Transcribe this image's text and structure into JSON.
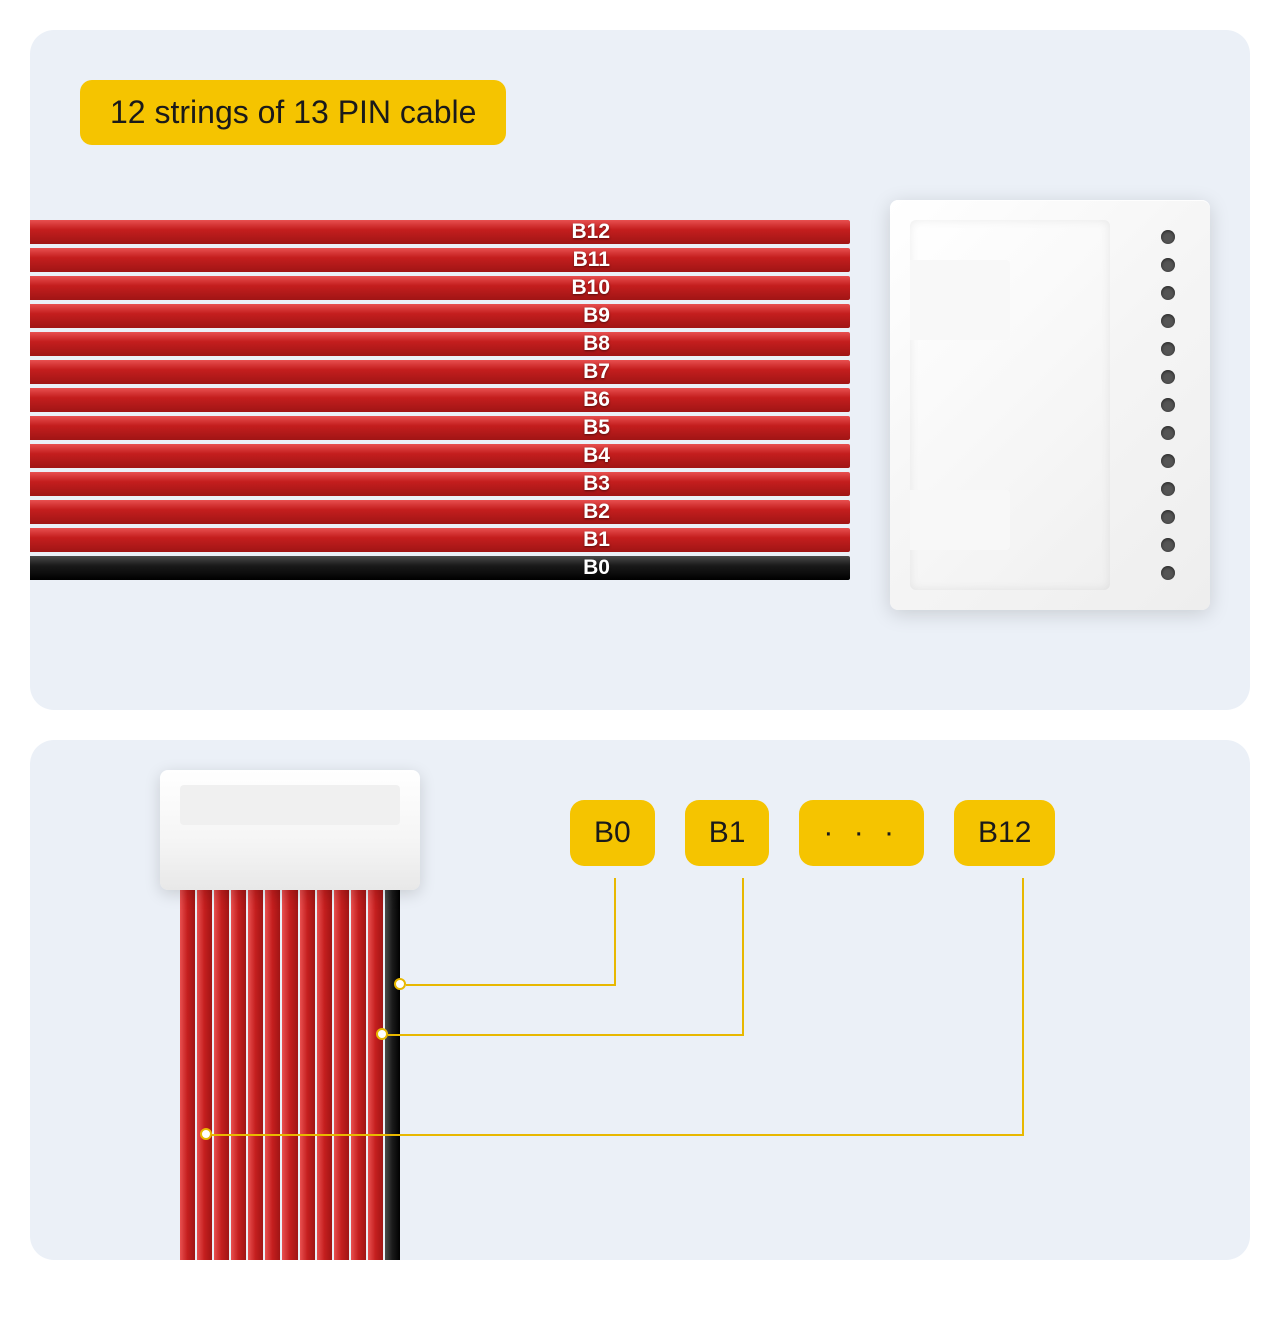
{
  "title": "12 strings of 13 PIN cable",
  "colors": {
    "panel_bg": "#ebf0f7",
    "badge_bg": "#f5c400",
    "badge_text": "#1a1a1a",
    "wire_red": "#c41e1e",
    "wire_black": "#1a1a1a",
    "connector": "#ffffff",
    "pin_hole": "#555555",
    "line": "#e8b800"
  },
  "top_panel": {
    "wires": [
      {
        "label": "B12",
        "color": "red"
      },
      {
        "label": "B11",
        "color": "red"
      },
      {
        "label": "B10",
        "color": "red"
      },
      {
        "label": "B9",
        "color": "red"
      },
      {
        "label": "B8",
        "color": "red"
      },
      {
        "label": "B7",
        "color": "red"
      },
      {
        "label": "B6",
        "color": "red"
      },
      {
        "label": "B5",
        "color": "red"
      },
      {
        "label": "B4",
        "color": "red"
      },
      {
        "label": "B3",
        "color": "red"
      },
      {
        "label": "B2",
        "color": "red"
      },
      {
        "label": "B1",
        "color": "red"
      },
      {
        "label": "B0",
        "color": "black"
      }
    ],
    "pin_count": 13
  },
  "bottom_panel": {
    "wire_count": 13,
    "black_wire_index": 12,
    "labels": [
      "B0",
      "B1",
      "· · ·",
      "B12"
    ]
  }
}
